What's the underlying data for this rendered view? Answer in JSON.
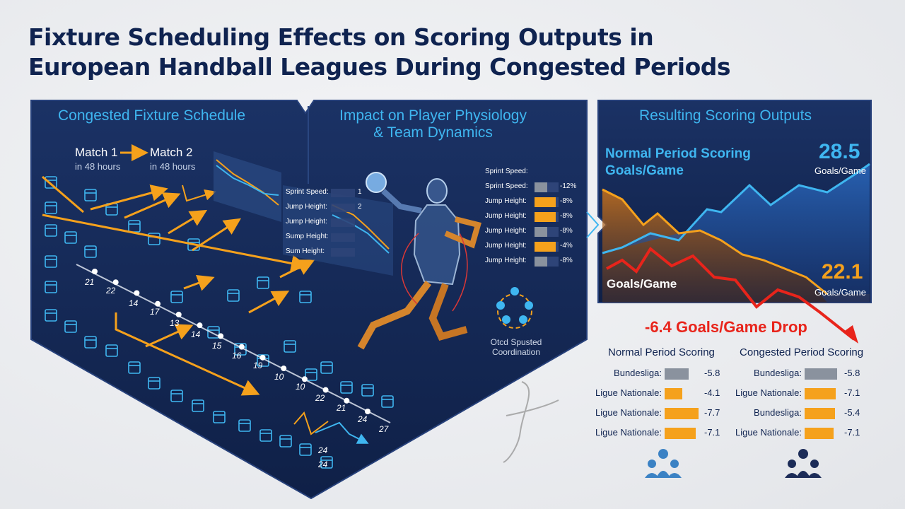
{
  "title": {
    "line1": "Fixture Scheduling Effects on Scoring Outputs in",
    "line2": "European Handball Leagues During Congested Periods"
  },
  "panel_schedule": {
    "heading": "Congested Fixture Schedule",
    "match1": "Match 1",
    "match1_sub": "in 48 hours",
    "match2": "Match 2",
    "match2_sub": "in 48 hours",
    "day_numbers": [
      "21",
      "22",
      "14",
      "17",
      "13",
      "14",
      "15",
      "16",
      "19",
      "10",
      "10",
      "22",
      "21",
      "24",
      "27",
      "24",
      "24"
    ]
  },
  "panel_physiology": {
    "heading_line1": "Impact on Player Physiology",
    "heading_line2": "& Team Dynamics",
    "left_metrics": [
      {
        "label": "Sprint Speed:",
        "value": "1"
      },
      {
        "label": "Jump Height:",
        "value": "2"
      },
      {
        "label": "Jump Height:",
        "value": ""
      },
      {
        "label": "Sump Height:",
        "value": ""
      },
      {
        "label": "Sum Height:",
        "value": ""
      }
    ],
    "right_header": "Sprint Speed:",
    "right_metrics": [
      {
        "label": "Sprint Speed:",
        "value": "-12%",
        "bar": "gray"
      },
      {
        "label": "Jump Height:",
        "value": "-8%",
        "bar": "orange"
      },
      {
        "label": "Jump Height:",
        "value": "-8%",
        "bar": "orange"
      },
      {
        "label": "Jump Height:",
        "value": "-8%",
        "bar": "gray"
      },
      {
        "label": "Jump Height:",
        "value": "-4%",
        "bar": "orange"
      },
      {
        "label": "Jump Height:",
        "value": "-8%",
        "bar": "gray"
      }
    ],
    "coordination_line1": "Otcd Spusted",
    "coordination_line2": "Coordination"
  },
  "panel_scoring": {
    "heading": "Resulting Scoring Outputs",
    "normal_label_line1": "Normal Period Scoring",
    "normal_label_line2": "Goals/Game",
    "normal_value": "28.5",
    "normal_unit": "Goals/Game",
    "congested_value": "22.1",
    "congested_unit": "Goals/Game",
    "left_goals_label": "Goals/Game"
  },
  "drop_text": "-6.4 Goals/Game Drop",
  "tables": {
    "normal": {
      "heading": "Normal Period Scoring",
      "rows": [
        {
          "league": "Bundesliga:",
          "value": "-5.8",
          "color": "gray",
          "fill": 0.6
        },
        {
          "league": "Ligue Nationale:",
          "value": "-4.1",
          "color": "orange",
          "fill": 0.45
        },
        {
          "league": "Ligue Nationale:",
          "value": "-7.7",
          "color": "orange",
          "fill": 0.85
        },
        {
          "league": "Ligue Nationale:",
          "value": "-7.1",
          "color": "orange",
          "fill": 0.78
        }
      ]
    },
    "congested": {
      "heading": "Congested Period Scoring",
      "rows": [
        {
          "league": "Bundesliga:",
          "value": "-5.8",
          "color": "gray",
          "fill": 0.82
        },
        {
          "league": "Ligue Nationale:",
          "value": "-7.1",
          "color": "orange",
          "fill": 0.78
        },
        {
          "league": "Bundesliga:",
          "value": "-5.4",
          "color": "orange",
          "fill": 0.76
        },
        {
          "league": "Ligue Nationale:",
          "value": "-7.1",
          "color": "orange",
          "fill": 0.74
        }
      ]
    }
  },
  "colors": {
    "navy": "#0f2350",
    "panel": "#15285a",
    "accent_blue": "#3fb6f0",
    "orange": "#f5a11c",
    "red": "#e8241b",
    "gray_bar": "#8a929e"
  }
}
